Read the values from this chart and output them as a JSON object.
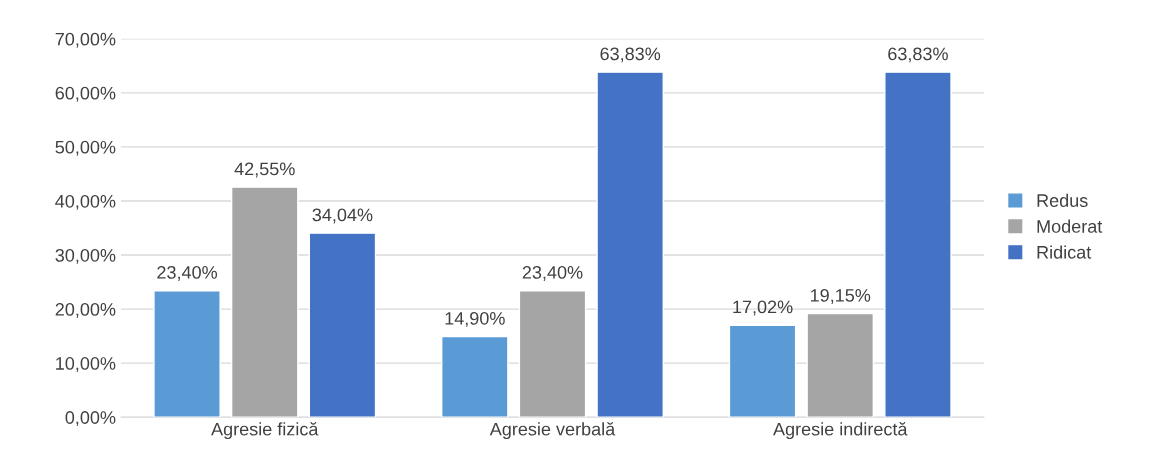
{
  "chart_data": {
    "type": "bar",
    "categories": [
      "Agresie fizică",
      "Agresie verbală",
      "Agresie indirectă"
    ],
    "series": [
      {
        "name": "Redus",
        "color": "#5b9bd5",
        "values": [
          23.4,
          14.9,
          17.02
        ],
        "value_labels": [
          "23,40%",
          "14,90%",
          "17,02%"
        ]
      },
      {
        "name": "Moderat",
        "color": "#a5a5a5",
        "values": [
          42.55,
          23.4,
          19.15
        ],
        "value_labels": [
          "42,55%",
          "23,40%",
          "19,15%"
        ]
      },
      {
        "name": "Ridicat",
        "color": "#4472c4",
        "values": [
          34.04,
          63.83,
          63.83
        ],
        "value_labels": [
          "34,04%",
          "63,83%",
          "63,83%"
        ]
      }
    ],
    "ylim": [
      0,
      70
    ],
    "yticks": [
      {
        "value": 0,
        "label": "0,00%"
      },
      {
        "value": 10,
        "label": "10,00%"
      },
      {
        "value": 20,
        "label": "20,00%"
      },
      {
        "value": 30,
        "label": "30,00%"
      },
      {
        "value": 40,
        "label": "40,00%"
      },
      {
        "value": 50,
        "label": "50,00%"
      },
      {
        "value": 60,
        "label": "60,00%"
      },
      {
        "value": 70,
        "label": "70,00%"
      }
    ],
    "grid": "y",
    "legend": "right"
  }
}
